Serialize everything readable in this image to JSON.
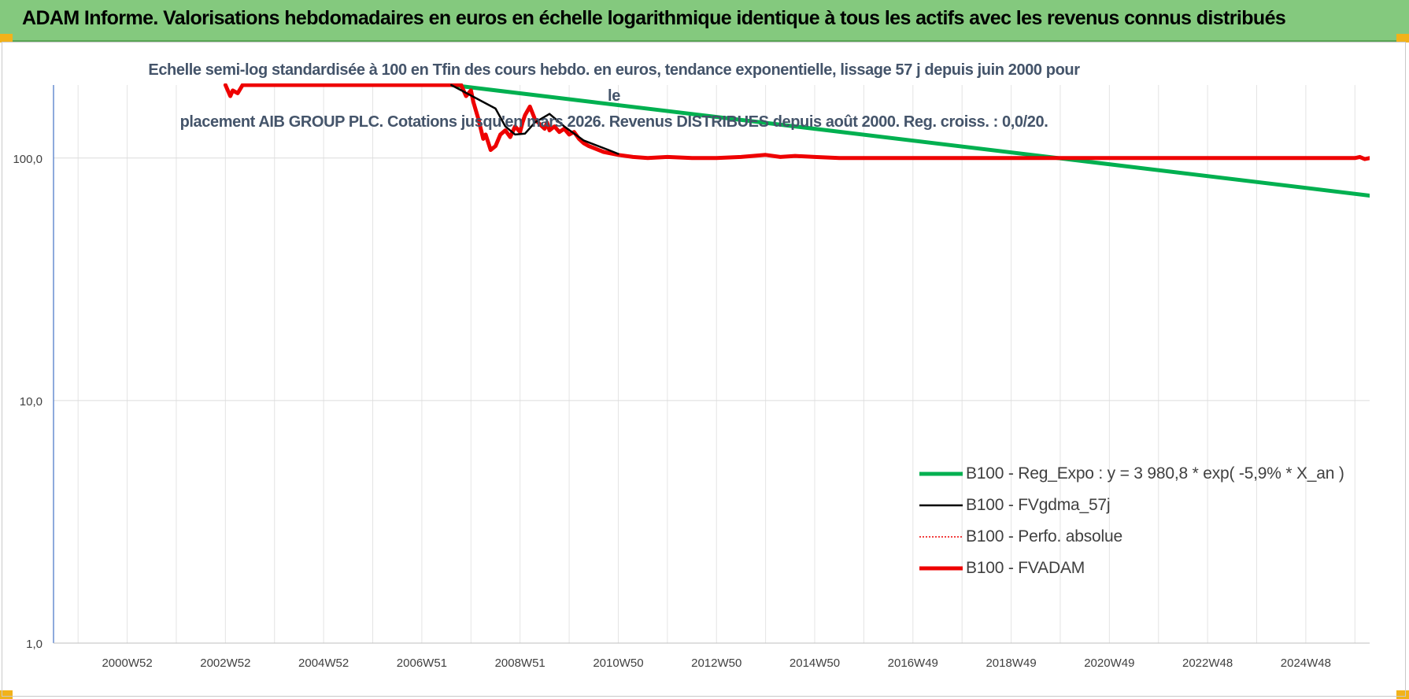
{
  "header": {
    "title": "ADAM Informe. Valorisations hebdomadaires en euros en échelle logarithmique identique à tous les actifs avec les revenus connus distribués"
  },
  "colors": {
    "header_bg": "#84c97e",
    "corner_accent": "#f2b21a",
    "trend_green": "#00b050",
    "fvadam_red": "#ee0000",
    "fvgdma_black": "#000000",
    "grid": "#e0e0e0"
  },
  "chart_data": {
    "type": "line",
    "subtitle_lines": [
      "Echelle semi-log standardisée à 100 en Tfin des cours hebdo. en euros, tendance exponentielle, lissage 57 j depuis juin 2000 pour le",
      "placement AIB GROUP PLC. Cotations jusqu'en mars 2026. Revenus DISTRIBUES depuis août 2000. Reg. croiss. : 0,0/20."
    ],
    "y_scale": "log",
    "ylim": [
      1,
      200
    ],
    "y_ticks": [
      "1,0",
      "10,0",
      "100,0"
    ],
    "y_tick_values": [
      1,
      10,
      100
    ],
    "xlim": [
      1999.5,
      2026.3
    ],
    "x_ticks": [
      "2000W52",
      "2002W52",
      "2004W52",
      "2006W51",
      "2008W51",
      "2010W50",
      "2012W50",
      "2014W50",
      "2016W49",
      "2018W49",
      "2020W49",
      "2022W48",
      "2024W48"
    ],
    "x_tick_years": [
      2001.0,
      2003.0,
      2005.0,
      2007.0,
      2009.0,
      2011.0,
      2013.0,
      2015.0,
      2017.0,
      2019.0,
      2021.0,
      2023.0,
      2025.0
    ],
    "grid": true,
    "legend_position": "bottom-right",
    "series": [
      {
        "name": "B100 - Reg_Expo : y = 3 980,8 * exp( -5,9% *  X_an )",
        "color": "#00b050",
        "style": "solid-thick",
        "x": [
          2007.6,
          2026.3
        ],
        "y": [
          200,
          70
        ]
      },
      {
        "name": "B100 - FVgdma_57j",
        "color": "#000000",
        "style": "solid-thin",
        "x": [
          2007.6,
          2008.5,
          2008.7,
          2008.9,
          2009.1,
          2009.3,
          2009.6,
          2009.9,
          2010.3,
          2010.8,
          2011.0
        ],
        "y": [
          200,
          160,
          135,
          125,
          126,
          140,
          152,
          135,
          118,
          108,
          104
        ]
      },
      {
        "name": "B100 - Perfo. absolue",
        "color": "#ee0000",
        "style": "dotted",
        "x": [],
        "y": []
      },
      {
        "name": "B100 - FVADAM",
        "color": "#ee0000",
        "style": "solid-thick",
        "x": [
          2003.0,
          2003.1,
          2003.15,
          2003.25,
          2003.35,
          2007.8,
          2007.9,
          2008.0,
          2008.05,
          2008.15,
          2008.25,
          2008.3,
          2008.4,
          2008.5,
          2008.6,
          2008.7,
          2008.8,
          2008.9,
          2009.0,
          2009.05,
          2009.1,
          2009.2,
          2009.3,
          2009.4,
          2009.5,
          2009.55,
          2009.6,
          2009.7,
          2009.8,
          2009.9,
          2010.0,
          2010.1,
          2010.2,
          2010.3,
          2010.4,
          2010.5,
          2010.7,
          2011.0,
          2011.3,
          2011.6,
          2012.0,
          2012.5,
          2013.0,
          2013.5,
          2014.0,
          2014.3,
          2014.6,
          2015.0,
          2015.5,
          2016.0,
          2017.0,
          2018.0,
          2019.0,
          2020.0,
          2021.0,
          2022.0,
          2023.0,
          2024.0,
          2025.0,
          2025.6,
          2026.0,
          2026.1,
          2026.2,
          2026.3
        ],
        "y": [
          200,
          180,
          190,
          185,
          200,
          200,
          180,
          190,
          170,
          145,
          120,
          125,
          108,
          112,
          125,
          130,
          122,
          135,
          128,
          140,
          150,
          163,
          145,
          138,
          132,
          140,
          130,
          135,
          128,
          132,
          125,
          128,
          120,
          115,
          112,
          110,
          106,
          103,
          101,
          100,
          101,
          100,
          100,
          101,
          103,
          101,
          102,
          101,
          100,
          100,
          100,
          100,
          100,
          100,
          100,
          100,
          100,
          100,
          100,
          100,
          100,
          101,
          99,
          100
        ]
      }
    ]
  }
}
